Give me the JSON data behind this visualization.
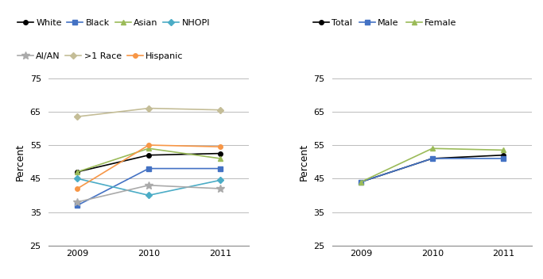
{
  "years": [
    2009,
    2010,
    2011
  ],
  "left_series": {
    "White": {
      "values": [
        47,
        52,
        52.5
      ],
      "color": "#000000",
      "marker": "o"
    },
    "Black": {
      "values": [
        37,
        48,
        48
      ],
      "color": "#4472C4",
      "marker": "s"
    },
    "Asian": {
      "values": [
        47,
        54,
        51
      ],
      "color": "#9BBB59",
      "marker": "^"
    },
    "NHOPI": {
      "values": [
        45,
        40,
        44.5
      ],
      "color": "#4BACC6",
      "marker": "D"
    },
    "AI/AN": {
      "values": [
        38,
        43,
        42
      ],
      "color": "#AAAAAA",
      "marker": "*"
    },
    ">1 Race": {
      "values": [
        63.5,
        66,
        65.5
      ],
      "color": "#C4BD97",
      "marker": "D"
    },
    "Hispanic": {
      "values": [
        42,
        55,
        54.5
      ],
      "color": "#F79646",
      "marker": "o"
    }
  },
  "right_series": {
    "Total": {
      "values": [
        44,
        51,
        52
      ],
      "color": "#000000",
      "marker": "o"
    },
    "Male": {
      "values": [
        44,
        51,
        51
      ],
      "color": "#4472C4",
      "marker": "s"
    },
    "Female": {
      "values": [
        44,
        54,
        53.5
      ],
      "color": "#9BBB59",
      "marker": "^"
    }
  },
  "ylabel": "Percent",
  "ylim": [
    25,
    75
  ],
  "yticks": [
    25,
    35,
    45,
    55,
    65,
    75
  ],
  "legend_left_row1": [
    "White",
    "Black",
    "Asian",
    "NHOPI"
  ],
  "legend_left_row2": [
    "AI/AN",
    ">1 Race",
    "Hispanic"
  ],
  "legend_right_order": [
    "Total",
    "Male",
    "Female"
  ],
  "background_color": "#ffffff",
  "grid_color": "#BBBBBB",
  "fig_width": 6.83,
  "fig_height": 3.52
}
